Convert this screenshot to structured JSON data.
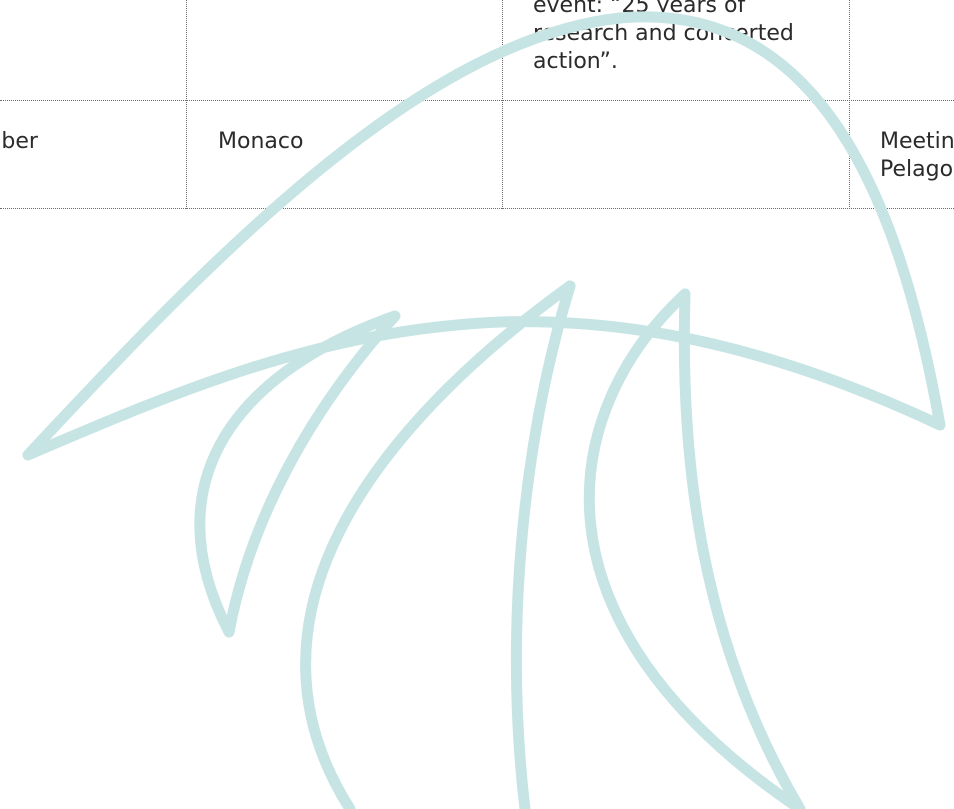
{
  "table": {
    "prev_row": {
      "event_text": "event: “25 years of research and concerted action”."
    },
    "row": {
      "date_partial": "mber",
      "place": "Monaco",
      "event": "",
      "meeting_partial": "Meeting Pelago"
    }
  },
  "watermark": {
    "icon": "sanctuary-whale-tail-logo-icon",
    "color": "#c6e4e4"
  }
}
